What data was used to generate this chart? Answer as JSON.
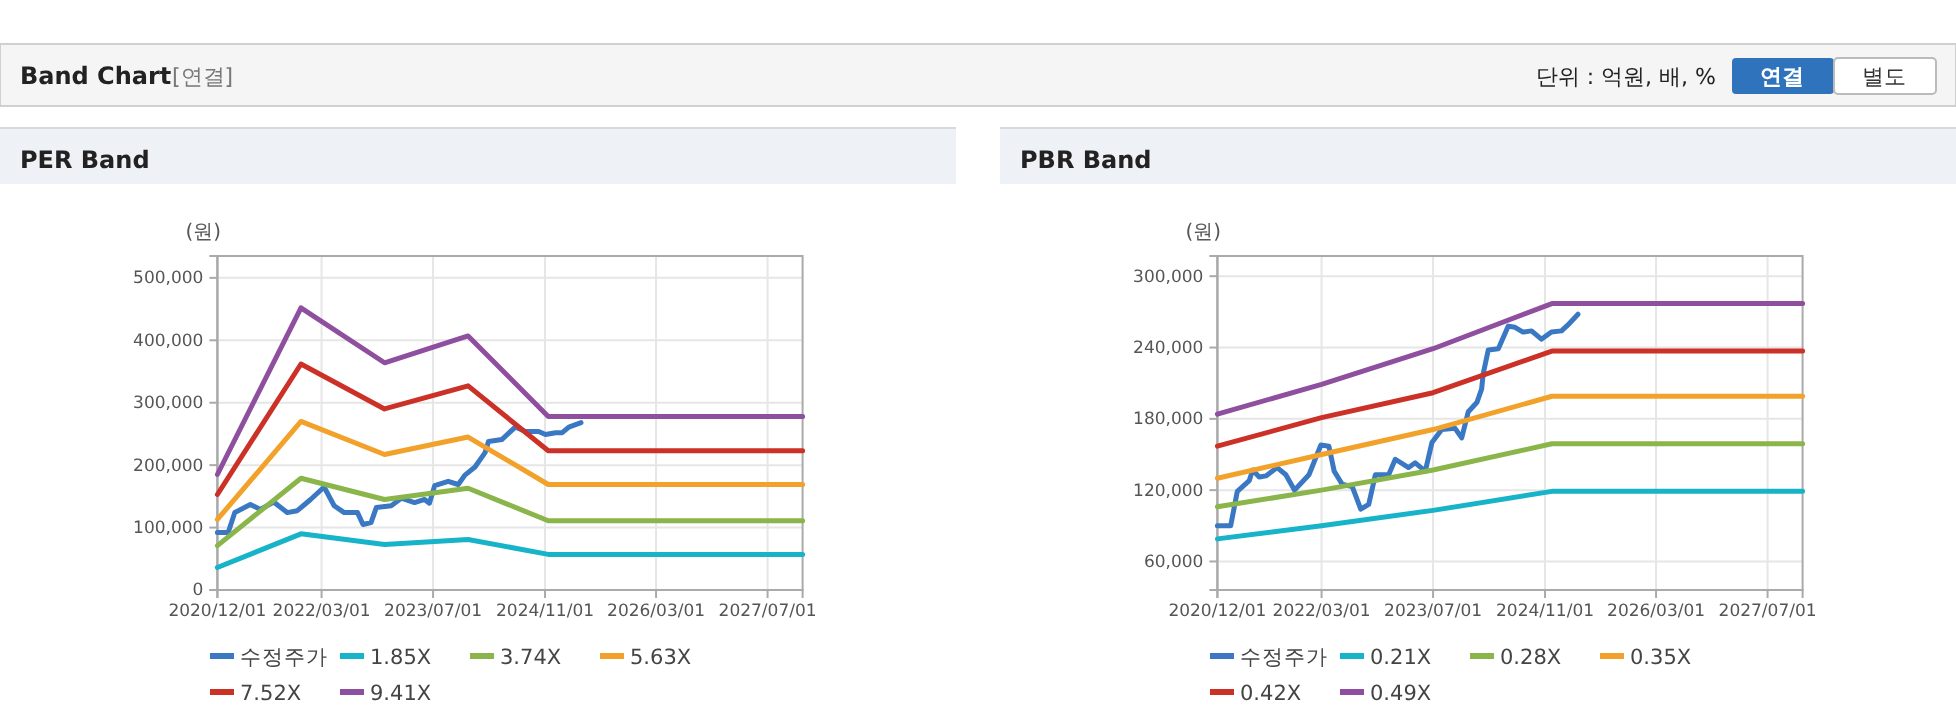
{
  "chart_data": [
    {
      "type": "line",
      "title": "PER Band",
      "ylabel": "(원)",
      "annotations": [
        "Band Chart",
        "[연결]",
        "단위 : 억원, 배, %",
        "연결",
        "별도"
      ],
      "xlim": [
        "2020-12-01",
        "2027-12-01"
      ],
      "xticks": [
        {
          "value": "2020-12-01",
          "label": "2020/12/01"
        },
        {
          "value": "2022-03-01",
          "label": "2022/03/01"
        },
        {
          "value": "2023-07-01",
          "label": "2023/07/01"
        },
        {
          "value": "2024-11-01",
          "label": "2024/11/01"
        },
        {
          "value": "2026-03-01",
          "label": "2026/03/01"
        },
        {
          "value": "2027-07-01",
          "label": "2027/07/01"
        }
      ],
      "ylim": [
        0,
        535000
      ],
      "yticks": [
        0,
        {
          "value": 100000,
          "label": "100,000"
        },
        {
          "value": 200000,
          "label": "200,000"
        },
        {
          "value": 300000,
          "label": "300,000"
        },
        {
          "value": 400000,
          "label": "400,000"
        },
        {
          "value": 500000,
          "label": "500,000"
        }
      ],
      "grid": true,
      "legend": "bottom",
      "marker": "none",
      "line_style": "solid",
      "series": [
        {
          "name": "수정주가",
          "color": "#3a78c3",
          "x": [
            "2020-12-01",
            "2021-01-17",
            "2021-02-15",
            "2021-04-24",
            "2021-06-07",
            "2021-08-04",
            "2021-10-02",
            "2021-11-15",
            "2022-01-12",
            "2022-03-12",
            "2022-04-25",
            "2022-06-08",
            "2022-08-05",
            "2022-08-29",
            "2022-10-03",
            "2022-10-26",
            "2022-12-30",
            "2023-02-12",
            "2023-04-11",
            "2023-05-25",
            "2023-06-15",
            "2023-07-08",
            "2023-09-05",
            "2023-10-19",
            "2023-11-17",
            "2023-12-31",
            "2024-02-13",
            "2024-02-28",
            "2024-04-26",
            "2024-06-24",
            "2024-08-07",
            "2024-10-04",
            "2024-11-03",
            "2024-12-17",
            "2025-01-15",
            "2025-02-13",
            "2025-04-07"
          ],
          "values": [
            92000,
            92000,
            124000,
            137000,
            129000,
            141000,
            124000,
            127000,
            145000,
            165000,
            135000,
            124000,
            124000,
            105000,
            108000,
            132000,
            135000,
            147000,
            140000,
            145000,
            139000,
            167000,
            174000,
            169000,
            184000,
            197000,
            220000,
            238000,
            241000,
            261000,
            254000,
            254000,
            249000,
            252000,
            252000,
            261000,
            268000
          ]
        },
        {
          "name": "1.85X",
          "color": "#17b3c8",
          "x": [
            "2020-12-01",
            "2021-12-01",
            "2022-12-01",
            "2023-12-01",
            "2024-11-15",
            "2027-12-01"
          ],
          "values": [
            36000,
            90000,
            73000,
            81000,
            57000,
            57000
          ]
        },
        {
          "name": "3.74X",
          "color": "#8ab54a",
          "x": [
            "2020-12-01",
            "2021-12-01",
            "2022-12-01",
            "2023-12-01",
            "2024-11-15",
            "2027-12-01"
          ],
          "values": [
            71000,
            179000,
            145000,
            163000,
            111000,
            111000
          ]
        },
        {
          "name": "5.63X",
          "color": "#f2a22a",
          "x": [
            "2020-12-01",
            "2021-12-01",
            "2022-12-01",
            "2023-12-01",
            "2024-11-15",
            "2027-12-01"
          ],
          "values": [
            113000,
            270000,
            217000,
            245000,
            169000,
            169000
          ]
        },
        {
          "name": "7.52X",
          "color": "#cc3128",
          "x": [
            "2020-12-01",
            "2021-12-01",
            "2022-12-01",
            "2023-12-01",
            "2024-11-15",
            "2027-12-01"
          ],
          "values": [
            153000,
            362000,
            290000,
            327000,
            223000,
            223000
          ]
        },
        {
          "name": "9.41X",
          "color": "#8e4f9e",
          "x": [
            "2020-12-01",
            "2021-12-01",
            "2022-12-01",
            "2023-12-01",
            "2024-11-15",
            "2027-12-01"
          ],
          "values": [
            185000,
            452000,
            364000,
            407000,
            278000,
            278000
          ]
        }
      ]
    },
    {
      "type": "line",
      "title": "PBR Band",
      "ylabel": "(원)",
      "xlim": [
        "2020-12-01",
        "2027-12-01"
      ],
      "xticks": [
        {
          "value": "2020-12-01",
          "label": "2020/12/01"
        },
        {
          "value": "2022-03-01",
          "label": "2022/03/01"
        },
        {
          "value": "2023-07-01",
          "label": "2023/07/01"
        },
        {
          "value": "2024-11-01",
          "label": "2024/11/01"
        },
        {
          "value": "2026-03-01",
          "label": "2026/03/01"
        },
        {
          "value": "2027-07-01",
          "label": "2027/07/01"
        }
      ],
      "ylim": [
        36000,
        317000
      ],
      "yticks": [
        {
          "value": 60000,
          "label": "60,000"
        },
        {
          "value": 120000,
          "label": "120,000"
        },
        {
          "value": 180000,
          "label": "180,000"
        },
        {
          "value": 240000,
          "label": "240,000"
        },
        {
          "value": 300000,
          "label": "300,000"
        }
      ],
      "grid": true,
      "legend": "bottom",
      "marker": "none",
      "line_style": "solid",
      "series": [
        {
          "name": "수정주가",
          "color": "#3a78c3",
          "x": [
            "2020-12-01",
            "2021-01-28",
            "2021-02-26",
            "2021-04-19",
            "2021-05-04",
            "2021-06-02",
            "2021-07-01",
            "2021-08-19",
            "2021-09-26",
            "2021-11-03",
            "2022-01-05",
            "2022-02-26",
            "2022-04-02",
            "2022-04-25",
            "2022-05-30",
            "2022-07-13",
            "2022-08-19",
            "2022-09-23",
            "2022-10-22",
            "2022-12-19",
            "2023-01-17",
            "2023-03-16",
            "2023-04-14",
            "2023-05-28",
            "2023-06-26",
            "2023-08-08",
            "2023-10-05",
            "2023-11-03",
            "2023-12-02",
            "2024-01-09",
            "2024-01-29",
            "2024-02-05",
            "2024-02-27",
            "2024-04-11",
            "2024-05-24",
            "2024-06-23",
            "2024-07-28",
            "2024-09-03",
            "2024-10-16",
            "2024-11-29",
            "2025-01-12",
            "2025-02-09",
            "2025-03-25"
          ],
          "values": [
            90000,
            90000,
            119000,
            128000,
            137000,
            131000,
            132000,
            139000,
            133000,
            120000,
            133000,
            158000,
            157000,
            136000,
            125000,
            123000,
            104000,
            108000,
            133000,
            133000,
            146000,
            139000,
            143000,
            136000,
            160000,
            171000,
            172000,
            164000,
            186000,
            194000,
            205000,
            218000,
            238000,
            239000,
            258000,
            257000,
            253000,
            254000,
            247000,
            253000,
            254000,
            259000,
            268000
          ]
        },
        {
          "name": "0.21X",
          "color": "#17b3c8",
          "x": [
            "2020-12-01",
            "2022-03-01",
            "2023-07-01",
            "2024-12-01",
            "2027-12-01"
          ],
          "values": [
            79000,
            90000,
            103000,
            119000,
            119000
          ]
        },
        {
          "name": "0.28X",
          "color": "#8ab54a",
          "x": [
            "2020-12-01",
            "2022-03-01",
            "2023-07-01",
            "2024-12-01",
            "2027-12-01"
          ],
          "values": [
            106000,
            120000,
            137000,
            159000,
            159000
          ]
        },
        {
          "name": "0.35X",
          "color": "#f2a22a",
          "x": [
            "2020-12-01",
            "2022-03-01",
            "2023-07-01",
            "2024-12-01",
            "2027-12-01"
          ],
          "values": [
            130000,
            150000,
            171000,
            199000,
            199000
          ]
        },
        {
          "name": "0.42X",
          "color": "#cc3128",
          "x": [
            "2020-12-01",
            "2022-03-01",
            "2023-07-01",
            "2024-12-01",
            "2027-12-01"
          ],
          "values": [
            157000,
            181000,
            202000,
            237000,
            237000
          ]
        },
        {
          "name": "0.49X",
          "color": "#8e4f9e",
          "x": [
            "2020-12-01",
            "2022-03-01",
            "2023-07-01",
            "2024-12-01",
            "2027-12-01"
          ],
          "values": [
            184000,
            209000,
            239000,
            277000,
            277000
          ]
        }
      ]
    }
  ]
}
